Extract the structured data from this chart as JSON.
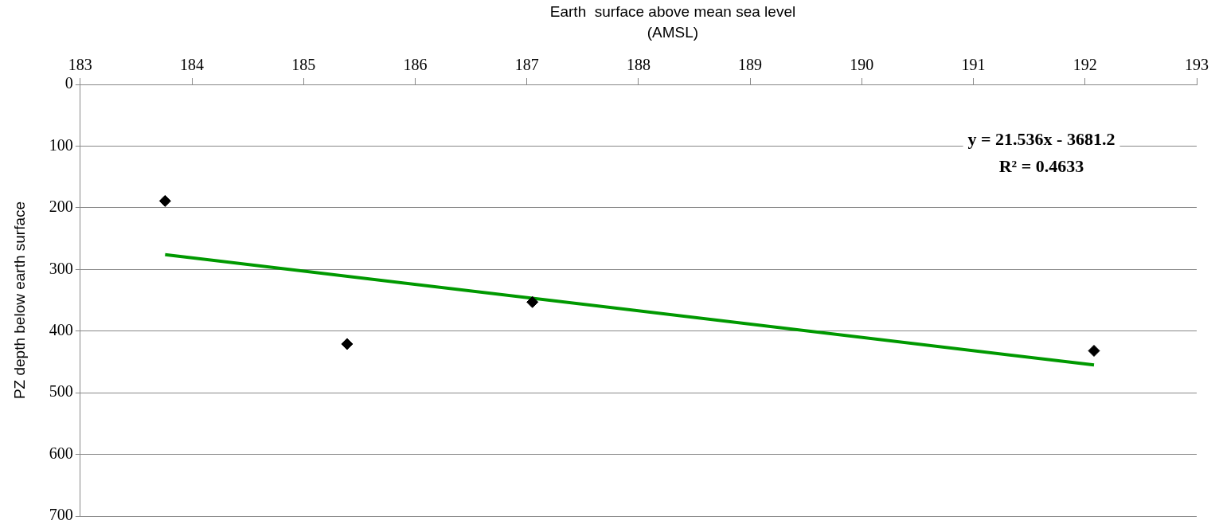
{
  "chart_data": {
    "type": "scatter",
    "xlabel": "Earth  surface above mean sea level  (AMSL)",
    "ylabel": "PZ depth below earth surface",
    "xlim": [
      183,
      193
    ],
    "xticks": [
      183,
      184,
      185,
      186,
      187,
      188,
      189,
      190,
      191,
      192,
      193
    ],
    "ylim": [
      700,
      0
    ],
    "yticks": [
      0,
      100,
      200,
      300,
      400,
      500,
      600,
      700
    ],
    "grid": "y",
    "legend": false,
    "marker": "diamond",
    "series": [
      {
        "color": "#000000",
        "x": [
          183.76,
          185.39,
          187.05,
          192.08
        ],
        "values": [
          189,
          421,
          353,
          432
        ]
      },
      {
        "type": "line",
        "color": "#009900",
        "marker": "none",
        "x": [
          183.76,
          192.08
        ],
        "values": [
          276,
          455
        ]
      }
    ],
    "annotations": [
      "y = 21.536x - 3681.2",
      "R² = 0.4633"
    ]
  }
}
